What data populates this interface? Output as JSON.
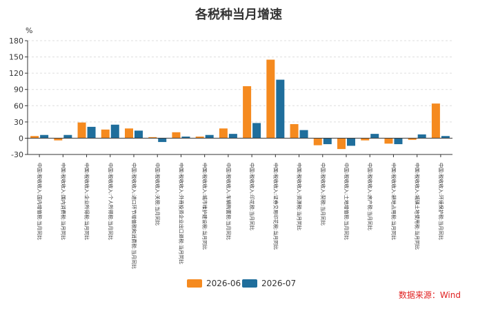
{
  "chart_data": {
    "type": "bar",
    "title": "各税种当月增速",
    "ylabel": "%",
    "ylim": [
      -30,
      180
    ],
    "yticks": [
      -30,
      0,
      30,
      60,
      90,
      120,
      150,
      180
    ],
    "grid": true,
    "legend_position": "bottom",
    "categories": [
      "中国:税收收入:国内增值税:当月同比",
      "中国:税收收入:国内消费税:当月同比",
      "中国:税收收入:企业所得税:当月同比",
      "中国:税收收入:个人所得税:当月同比",
      "中国:税收收入:进口环节增值税和消费税:当月同比",
      "中国:税收收入:关税:当月同比",
      "中国:税收收入:外商投资企业出口退税:当月同比",
      "中国:税收收入:城市维护建设税:当月同比",
      "中国:税收收入:车辆购置税:当月同比",
      "中国:税收收入:印花税:当月同比",
      "中国:税收收入:证券交易印花税:当月同比",
      "中国:税收收入:资源税:当月同比",
      "中国:税收收入:契税:当月同比",
      "中国:税收收入:土地增值税:当月同比",
      "中国:税收收入:房产税:当月同比",
      "中国:税收收入:耕地占用税:当月同比",
      "中国:税收收入:城镇土地使用税:当月同比",
      "中国:税收收入:环境保护税:当月同比"
    ],
    "series": [
      {
        "name": "2026-06",
        "color": "#f58a1f",
        "values": [
          4,
          -4,
          29,
          16,
          18,
          2,
          11,
          3,
          18,
          96,
          145,
          26,
          -13,
          -20,
          -4,
          -10,
          -3,
          64
        ]
      },
      {
        "name": "2026-07",
        "color": "#1f6e9c",
        "values": [
          6,
          6,
          21,
          25,
          14,
          -7,
          3,
          6,
          8,
          28,
          108,
          15,
          -11,
          -14,
          8,
          -11,
          7,
          4
        ]
      }
    ]
  },
  "source_note": "数据来源：Wind"
}
